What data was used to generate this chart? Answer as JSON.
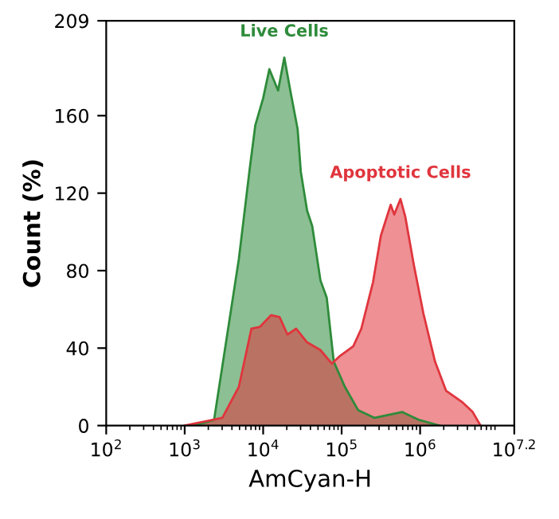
{
  "chart_data": {
    "type": "area",
    "xlabel": "AmCyan-H",
    "ylabel": "Count (%)",
    "log": "x",
    "xlim": [
      100,
      15848932
    ],
    "ylim": [
      0,
      209
    ],
    "xticks": [
      {
        "value": 100,
        "label": "10$^{2}$"
      },
      {
        "value": 1000,
        "label": "10$^{3}$"
      },
      {
        "value": 10000,
        "label": "10$^{4}$"
      },
      {
        "value": 100000,
        "label": "10$^{5}$"
      },
      {
        "value": 1000000,
        "label": "10$^{6}$"
      },
      {
        "value": 15848932,
        "label": "10$^{7.2}$"
      }
    ],
    "yticks": [
      0,
      40,
      80,
      120,
      160,
      209
    ],
    "grid": false,
    "legend": false,
    "series": [
      {
        "name": "Live Cells",
        "color": "#2e8b3a",
        "x": [
          1330,
          2370,
          4900,
          6760,
          7940,
          10000,
          12000,
          15500,
          18600,
          22400,
          27500,
          30200,
          36300,
          42200,
          53700,
          64600,
          79400,
          110000,
          162000,
          263000,
          589000,
          955000,
          1780000
        ],
        "values": [
          0,
          3,
          86,
          133,
          155,
          169,
          184,
          173,
          190,
          172,
          153,
          131,
          111,
          103,
          75,
          66,
          33,
          20,
          8,
          4,
          7,
          3,
          0
        ]
      },
      {
        "name": "Apoptotic Cells",
        "color": "#e0353d",
        "x": [
          1000,
          3020,
          4900,
          7080,
          9120,
          12600,
          16200,
          20400,
          26300,
          36300,
          53700,
          75000,
          95500,
          141000,
          178000,
          251000,
          316000,
          422000,
          468000,
          562000,
          646000,
          832000,
          1100000,
          1550000,
          2140000,
          3470000,
          4680000,
          5890000
        ],
        "values": [
          0,
          4,
          20,
          50,
          51,
          57,
          56,
          47,
          50,
          43,
          39,
          32,
          36,
          41,
          50,
          74,
          98,
          114,
          109,
          117,
          108,
          83,
          58,
          33,
          18,
          12,
          7,
          0
        ]
      }
    ]
  }
}
